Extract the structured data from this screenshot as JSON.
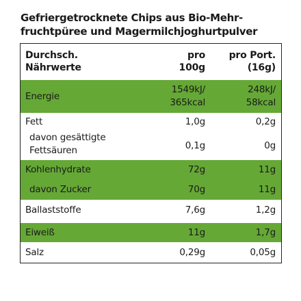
{
  "title_line1": "Gefriergetrocknete Chips aus Bio-Mehr-",
  "title_line2": "fruchtpüree und Magermilchjoghurtpulver",
  "header": {
    "col1_line1": "Durchsch.",
    "col1_line2": "Nährwerte",
    "col2_line1": "pro",
    "col2_line2": "100g",
    "col3_line1": "pro Port.",
    "col3_line2": "(16g)"
  },
  "rows": [
    {
      "label": "Energie",
      "per100_line1": "1549kJ/",
      "per100_line2": "365kcal",
      "portion_line1": "248kJ/",
      "portion_line2": "58kcal",
      "highlight": true
    },
    {
      "label": "Fett",
      "per100": "1,0g",
      "portion": "0,2g",
      "highlight": false
    },
    {
      "label_line1": "davon gesättigte",
      "label_line2": "Fettsäuren",
      "per100": "0,1g",
      "portion": "0g",
      "highlight": false
    },
    {
      "label": "Kohlenhydrate",
      "per100": "72g",
      "portion": "11g",
      "highlight": true
    },
    {
      "label": "davon Zucker",
      "per100": "70g",
      "portion": "11g",
      "highlight": true
    },
    {
      "label": "Ballaststoffe",
      "per100": "7,6g",
      "portion": "1,2g",
      "highlight": false
    },
    {
      "label": "Eiweiß",
      "per100": "11g",
      "portion": "1,7g",
      "highlight": true
    },
    {
      "label": "Salz",
      "per100": "0,29g",
      "portion": "0,05g",
      "highlight": false
    }
  ],
  "colors": {
    "highlight": "#65a836",
    "border": "#222222"
  }
}
